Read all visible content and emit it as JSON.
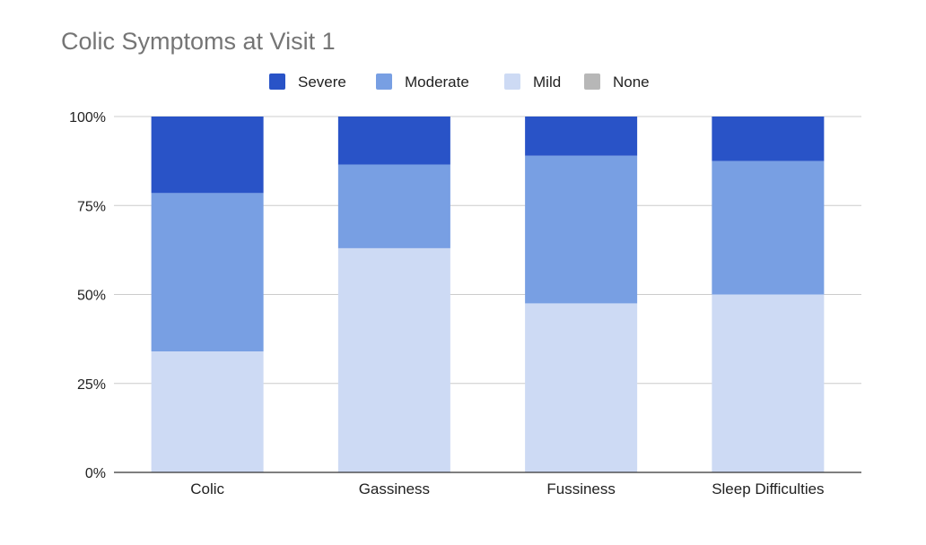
{
  "chart_data": {
    "type": "bar",
    "stacked": "percent",
    "title": "Colic Symptoms at Visit 1",
    "categories": [
      "Colic",
      "Gassiness",
      "Fussiness",
      "Sleep Difficulties"
    ],
    "series": [
      {
        "name": "Severe",
        "color": "#2953c7",
        "values": [
          21.5,
          13.5,
          11,
          12.5
        ]
      },
      {
        "name": "Moderate",
        "color": "#789fe3",
        "values": [
          44.5,
          23.5,
          41.5,
          37.5
        ]
      },
      {
        "name": "Mild",
        "color": "#cddaf4",
        "values": [
          34,
          63,
          47.5,
          50
        ]
      },
      {
        "name": "None",
        "color": "#b7b7b7",
        "values": [
          0,
          0,
          0,
          0
        ]
      }
    ],
    "ylim": [
      0,
      100
    ],
    "yticks": [
      "0%",
      "25%",
      "50%",
      "75%",
      "100%"
    ],
    "grid": true,
    "legend_position": "top"
  }
}
